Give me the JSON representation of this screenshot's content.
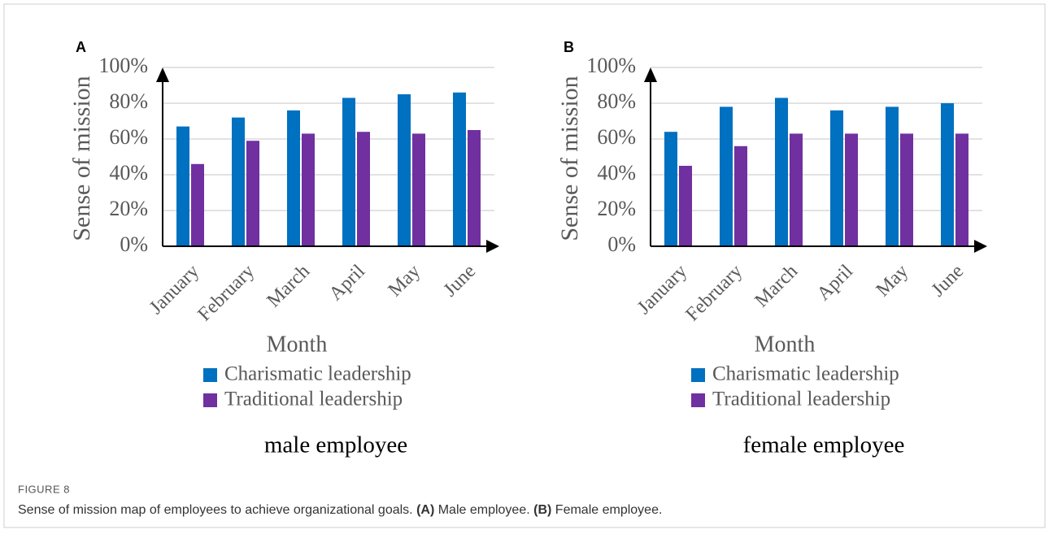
{
  "chart_data": [
    {
      "type": "bar",
      "panel": "A",
      "title": "male employee",
      "xlabel": "Month",
      "ylabel": "Sense of mission",
      "categories": [
        "January",
        "February",
        "March",
        "April",
        "May",
        "June"
      ],
      "series": [
        {
          "name": "Charismatic leadership",
          "color": "#0070c0",
          "values": [
            67,
            72,
            76,
            83,
            85,
            86
          ]
        },
        {
          "name": "Traditional leadership",
          "color": "#7030a0",
          "values": [
            46,
            59,
            63,
            64,
            63,
            65
          ]
        }
      ],
      "ylim": [
        0,
        100
      ],
      "yticks": [
        {
          "value": 0,
          "label": "0%"
        },
        {
          "value": 20,
          "label": "20%"
        },
        {
          "value": 40,
          "label": "40%"
        },
        {
          "value": 60,
          "label": "60%"
        },
        {
          "value": 80,
          "label": "80%"
        },
        {
          "value": 100,
          "label": "100%"
        }
      ],
      "grid": true
    },
    {
      "type": "bar",
      "panel": "B",
      "title": "female employee",
      "xlabel": "Month",
      "ylabel": "Sense of mission",
      "categories": [
        "January",
        "February",
        "March",
        "April",
        "May",
        "June"
      ],
      "series": [
        {
          "name": "Charismatic leadership",
          "color": "#0070c0",
          "values": [
            64,
            78,
            83,
            76,
            78,
            80
          ]
        },
        {
          "name": "Traditional leadership",
          "color": "#7030a0",
          "values": [
            45,
            56,
            63,
            63,
            63,
            63
          ]
        }
      ],
      "ylim": [
        0,
        100
      ],
      "yticks": [
        {
          "value": 0,
          "label": "0%"
        },
        {
          "value": 20,
          "label": "20%"
        },
        {
          "value": 40,
          "label": "40%"
        },
        {
          "value": 60,
          "label": "60%"
        },
        {
          "value": 80,
          "label": "80%"
        },
        {
          "value": 100,
          "label": "100%"
        }
      ],
      "grid": true
    }
  ],
  "caption": {
    "label": "FIGURE 8",
    "parts": [
      "Sense of mission map of employees to achieve organizational goals. ",
      "(A)",
      " Male employee. ",
      "(B)",
      " Female employee."
    ]
  }
}
